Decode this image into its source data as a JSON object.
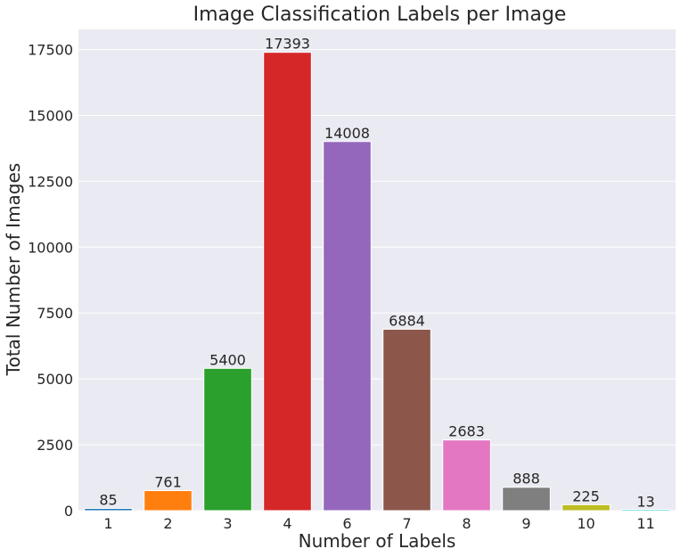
{
  "chart_data": {
    "type": "bar",
    "title": "Image Classification Labels per Image",
    "xlabel": "Number of Labels",
    "ylabel": "Total Number of Images",
    "categories": [
      "1",
      "2",
      "3",
      "4",
      "6",
      "7",
      "8",
      "9",
      "10",
      "11"
    ],
    "values": [
      85,
      761,
      5400,
      17393,
      14008,
      6884,
      2683,
      888,
      225,
      13
    ],
    "ylim": [
      0,
      18262
    ],
    "yticks": [
      "0",
      "2500",
      "5000",
      "7500",
      "10000",
      "12500",
      "15000",
      "17500"
    ],
    "grid": true,
    "legend": "none",
    "colors": [
      "#1f77b4",
      "#ff7f0e",
      "#2ca02c",
      "#d62728",
      "#9467bd",
      "#8c564b",
      "#e377c2",
      "#7f7f7f",
      "#bcbd22",
      "#17becf"
    ],
    "background": "#eaeaf2",
    "gridColor": "#ffffff"
  }
}
